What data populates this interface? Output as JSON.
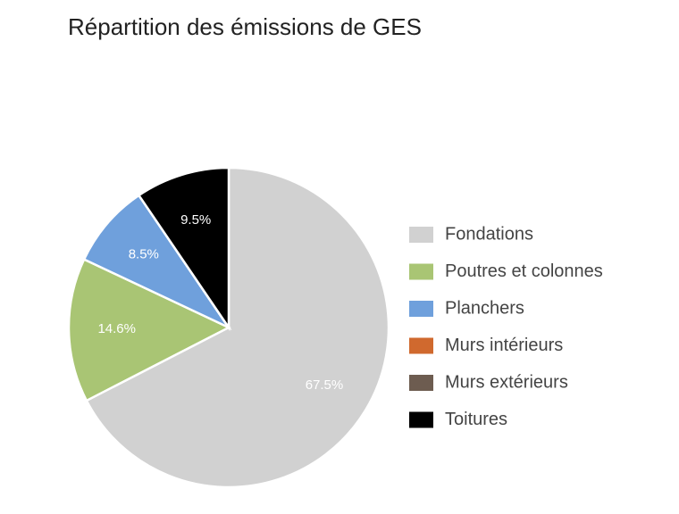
{
  "chart_data": {
    "type": "pie",
    "title": "Répartition des émissions de GES",
    "categories": [
      "Fondations",
      "Poutres et colonnes",
      "Planchers",
      "Murs intérieurs",
      "Murs extérieurs",
      "Toitures"
    ],
    "values": [
      67.5,
      14.6,
      8.5,
      0,
      0,
      9.5
    ],
    "value_labels": [
      "67.5%",
      "14.6%",
      "8.5%",
      null,
      null,
      "9.5%"
    ],
    "colors": [
      "#d1d1d1",
      "#a9c574",
      "#6fa0dc",
      "#d0692e",
      "#6d5c50",
      "#000000"
    ],
    "legend": "right"
  }
}
